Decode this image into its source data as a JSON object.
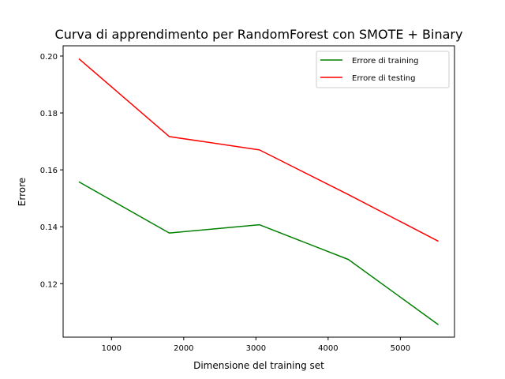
{
  "chart_data": {
    "type": "line",
    "title": "Curva di apprendimento per RandomForest con SMOTE + Binary",
    "xlabel": "Dimensione del training set",
    "ylabel": "Errore",
    "x": [
      555,
      1800,
      3050,
      4280,
      5520
    ],
    "series": [
      {
        "name": "Errore di training",
        "color": "#008000",
        "values": [
          0.1557,
          0.1378,
          0.1407,
          0.1285,
          0.1057
        ]
      },
      {
        "name": "Errore di testing",
        "color": "#ff0000",
        "values": [
          0.1989,
          0.1717,
          0.167,
          0.1513,
          0.135
        ]
      }
    ],
    "xlim": [
      330,
      5750
    ],
    "ylim": [
      0.1012,
      0.2036
    ],
    "xticks": [
      1000,
      2000,
      3000,
      4000,
      5000
    ],
    "xtick_labels": [
      "1000",
      "2000",
      "3000",
      "4000",
      "5000"
    ],
    "yticks": [
      0.12,
      0.14,
      0.16,
      0.18,
      0.2
    ],
    "ytick_labels": [
      "0.12",
      "0.14",
      "0.16",
      "0.18",
      "0.20"
    ],
    "grid": false,
    "legend_position": "top-right"
  }
}
